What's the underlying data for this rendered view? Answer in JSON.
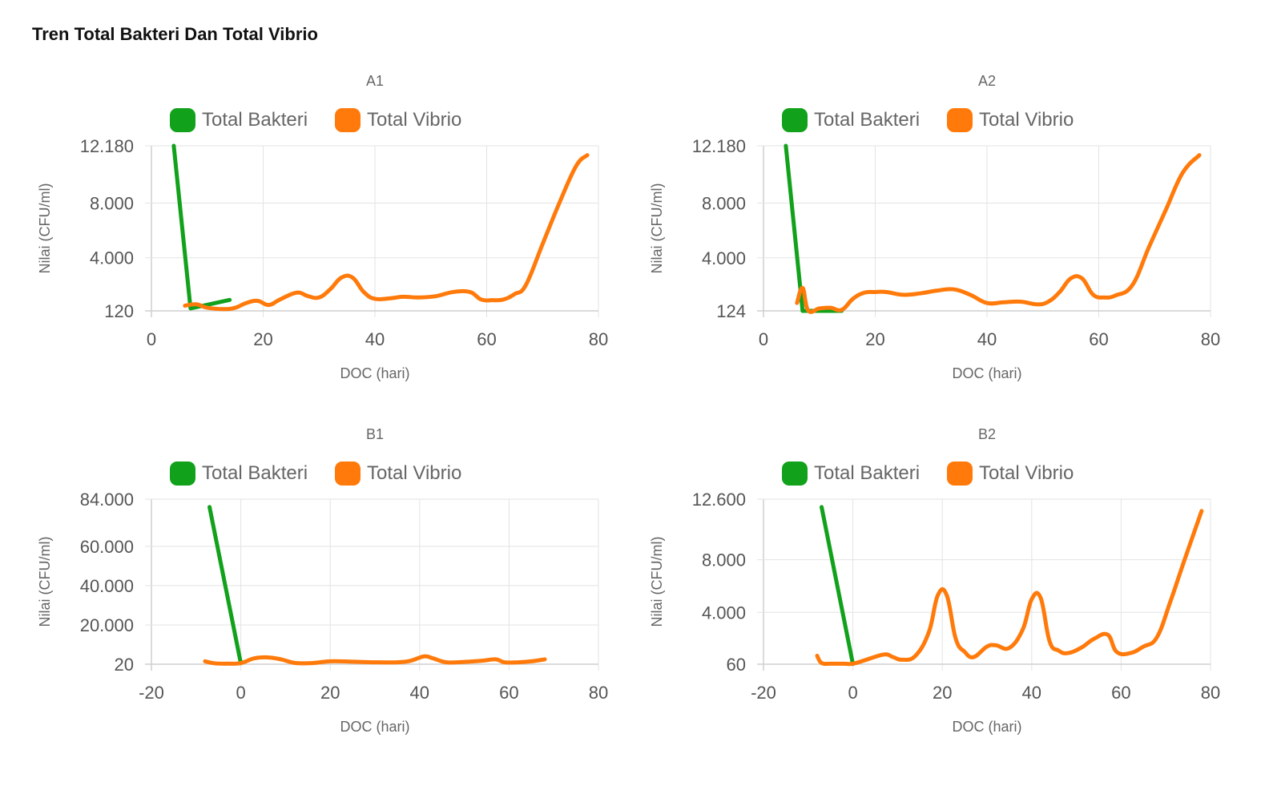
{
  "page": {
    "title": "Tren Total Bakteri Dan Total Vibrio"
  },
  "colors": {
    "bakteri": "#11a11b",
    "vibrio": "#ff7a0a"
  },
  "chart_data": [
    {
      "type": "line",
      "title": "A1",
      "xlabel": "DOC (hari)",
      "ylabel": "Nilai (CFU/ml)",
      "xlim": [
        0,
        80
      ],
      "x_ticks": [
        0,
        20,
        40,
        60,
        80
      ],
      "x_tick_labels": [
        "0",
        "20",
        "40",
        "60",
        "80"
      ],
      "ylim": [
        120,
        12180
      ],
      "y_ticks": [
        120,
        4000,
        8000,
        12180
      ],
      "y_tick_labels": [
        "120",
        "4.000",
        "8.000",
        "12.180"
      ],
      "legend": [
        "Total Bakteri",
        "Total Vibrio"
      ],
      "series": [
        {
          "name": "Total Bakteri",
          "x": [
            4,
            7,
            14
          ],
          "y": [
            12180,
            300,
            920
          ]
        },
        {
          "name": "Total Vibrio",
          "x": [
            6,
            8,
            10,
            13,
            15,
            17,
            19,
            21,
            23,
            26,
            28,
            30,
            32,
            34,
            36,
            38,
            40,
            43,
            45,
            48,
            51,
            54,
            57,
            59,
            61,
            63,
            65,
            67,
            70,
            73,
            76,
            78
          ],
          "y": [
            500,
            600,
            350,
            250,
            350,
            700,
            850,
            550,
            950,
            1450,
            1200,
            1100,
            1700,
            2550,
            2550,
            1500,
            1000,
            1050,
            1150,
            1100,
            1200,
            1500,
            1500,
            950,
            900,
            950,
            1350,
            2000,
            5000,
            8000,
            10700,
            11500
          ]
        }
      ]
    },
    {
      "type": "line",
      "title": "A2",
      "xlabel": "DOC (hari)",
      "ylabel": "Nilai (CFU/ml)",
      "xlim": [
        0,
        80
      ],
      "x_ticks": [
        0,
        20,
        40,
        60,
        80
      ],
      "x_tick_labels": [
        "0",
        "20",
        "40",
        "60",
        "80"
      ],
      "ylim": [
        124,
        12180
      ],
      "y_ticks": [
        124,
        4000,
        8000,
        12180
      ],
      "y_tick_labels": [
        "124",
        "4.000",
        "8.000",
        "12.180"
      ],
      "legend": [
        "Total Bakteri",
        "Total Vibrio"
      ],
      "series": [
        {
          "name": "Total Bakteri",
          "x": [
            4,
            7,
            14
          ],
          "y": [
            12180,
            124,
            124
          ]
        },
        {
          "name": "Total Vibrio",
          "x": [
            6,
            7,
            8,
            10,
            12,
            14,
            16,
            18,
            20,
            22,
            25,
            28,
            31,
            34,
            37,
            40,
            43,
            46,
            49,
            51,
            53,
            55,
            57,
            59,
            61,
            63,
            66,
            69,
            72,
            75,
            78
          ],
          "y": [
            700,
            1800,
            150,
            300,
            350,
            200,
            1000,
            1450,
            1500,
            1500,
            1300,
            1400,
            1600,
            1700,
            1300,
            700,
            750,
            800,
            600,
            800,
            1500,
            2500,
            2500,
            1300,
            1100,
            1250,
            2000,
            4800,
            7500,
            10200,
            11500
          ]
        }
      ]
    },
    {
      "type": "line",
      "title": "B1",
      "xlabel": "DOC (hari)",
      "ylabel": "Nilai (CFU/ml)",
      "xlim": [
        -20,
        80
      ],
      "x_ticks": [
        -20,
        0,
        20,
        40,
        60,
        80
      ],
      "x_tick_labels": [
        "-20",
        "0",
        "20",
        "40",
        "60",
        "80"
      ],
      "ylim": [
        20,
        84000
      ],
      "y_ticks": [
        20,
        20000,
        40000,
        60000,
        84000
      ],
      "y_tick_labels": [
        "20",
        "20.000",
        "40.000",
        "60.000",
        "84.000"
      ],
      "legend": [
        "Total Bakteri",
        "Total Vibrio"
      ],
      "series": [
        {
          "name": "Total Bakteri",
          "x": [
            -7,
            0
          ],
          "y": [
            80000,
            500
          ]
        },
        {
          "name": "Total Vibrio",
          "x": [
            -8,
            -6,
            -3,
            0,
            3,
            6,
            9,
            12,
            16,
            20,
            25,
            30,
            35,
            38,
            41,
            43,
            46,
            50,
            54,
            57,
            59,
            62,
            65,
            68
          ],
          "y": [
            1500,
            500,
            300,
            600,
            3000,
            3500,
            2500,
            700,
            600,
            1500,
            1300,
            1000,
            1000,
            1800,
            4000,
            3000,
            1000,
            1200,
            1800,
            2500,
            1000,
            1000,
            1500,
            2500
          ]
        }
      ]
    },
    {
      "type": "line",
      "title": "B2",
      "xlabel": "DOC (hari)",
      "ylabel": "Nilai (CFU/ml)",
      "xlim": [
        -20,
        80
      ],
      "x_ticks": [
        -20,
        0,
        20,
        40,
        60,
        80
      ],
      "x_tick_labels": [
        "-20",
        "0",
        "20",
        "40",
        "60",
        "80"
      ],
      "ylim": [
        60,
        12600
      ],
      "y_ticks": [
        60,
        4000,
        8000,
        12600
      ],
      "y_tick_labels": [
        "60",
        "4.000",
        "8.000",
        "12.600"
      ],
      "legend": [
        "Total Bakteri",
        "Total Vibrio"
      ],
      "series": [
        {
          "name": "Total Bakteri",
          "x": [
            -7,
            0
          ],
          "y": [
            12000,
            80
          ]
        },
        {
          "name": "Total Vibrio",
          "x": [
            -8,
            -7,
            -5,
            -2,
            0,
            3,
            7,
            9,
            11,
            14,
            17,
            19,
            21,
            23,
            25,
            27,
            30,
            32,
            35,
            38,
            40,
            42,
            44,
            46,
            48,
            51,
            54,
            57,
            59,
            62,
            65,
            68,
            71,
            74,
            78
          ],
          "y": [
            700,
            150,
            100,
            100,
            100,
            400,
            800,
            600,
            400,
            700,
            2500,
            5300,
            5300,
            2000,
            1000,
            600,
            1400,
            1500,
            1300,
            2700,
            5000,
            5100,
            1800,
            1100,
            900,
            1300,
            2000,
            2300,
            1000,
            900,
            1400,
            2100,
            4800,
            7800,
            11700
          ]
        }
      ]
    }
  ]
}
